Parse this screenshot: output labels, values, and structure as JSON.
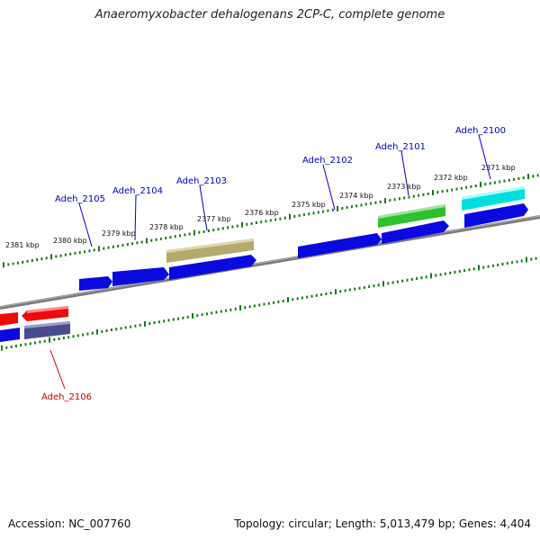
{
  "title": "Anaeromyxobacter dehalogenans 2CP-C, complete genome",
  "accession": "Accession: NC_007760",
  "summary": "Topology: circular; Length: 5,013,479 bp; Genes: 4,404",
  "colors": {
    "backbone": "#7a7a7a",
    "tick": "#1a7a1a",
    "forward_label": "#0000cc",
    "reverse_label": "#cc0000",
    "gene_blue": "#0a0adf",
    "gene_red": "#ee0a0a",
    "gene_slate": "#4a4a8c",
    "gene_olive": "#b4aa6e",
    "gene_green": "#2ec02e",
    "gene_cyan": "#00dede"
  },
  "scale_labels": [
    "2381 kbp",
    "2380 kbp",
    "2379 kbp",
    "2378 kbp",
    "2377 kbp",
    "2376 kbp",
    "2375 kbp",
    "2374 kbp",
    "2373 kbp",
    "2372 kbp",
    "2371 kbp"
  ],
  "gene_labels": [
    {
      "name": "Adeh_2100",
      "strand": "forward"
    },
    {
      "name": "Adeh_2101",
      "strand": "forward"
    },
    {
      "name": "Adeh_2102",
      "strand": "forward"
    },
    {
      "name": "Adeh_2103",
      "strand": "forward"
    },
    {
      "name": "Adeh_2104",
      "strand": "forward"
    },
    {
      "name": "Adeh_2105",
      "strand": "forward"
    },
    {
      "name": "Adeh_2106",
      "strand": "reverse"
    }
  ]
}
